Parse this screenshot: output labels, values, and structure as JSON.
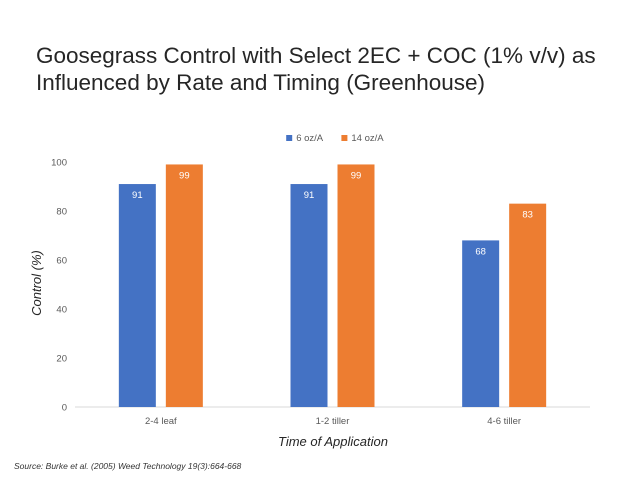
{
  "chart_data": {
    "type": "bar",
    "title_lines": [
      "Goosegrass  Control with Select 2EC + COC (1% v/v) as",
      "Influenced by Rate and Timing (Greenhouse)"
    ],
    "categories": [
      "2-4 leaf",
      "1-2 tiller",
      "4-6 tiller"
    ],
    "series": [
      {
        "name": "6 oz/A",
        "values": [
          91,
          91,
          68
        ],
        "color": "#4472C4"
      },
      {
        "name": "14 oz/A",
        "values": [
          99,
          99,
          83
        ],
        "color": "#ED7D31"
      }
    ],
    "xlabel": "Time of Application",
    "ylabel": "Control (%)",
    "ylim": [
      0,
      100
    ],
    "yticks": [
      0,
      20,
      40,
      60,
      80,
      100
    ],
    "grid": false,
    "legend_position": "top-center",
    "data_labels": "inside-end",
    "label_color": "#ffffff"
  },
  "source": "Source:  Burke et al. (2005) Weed Technology 19(3):664-668"
}
